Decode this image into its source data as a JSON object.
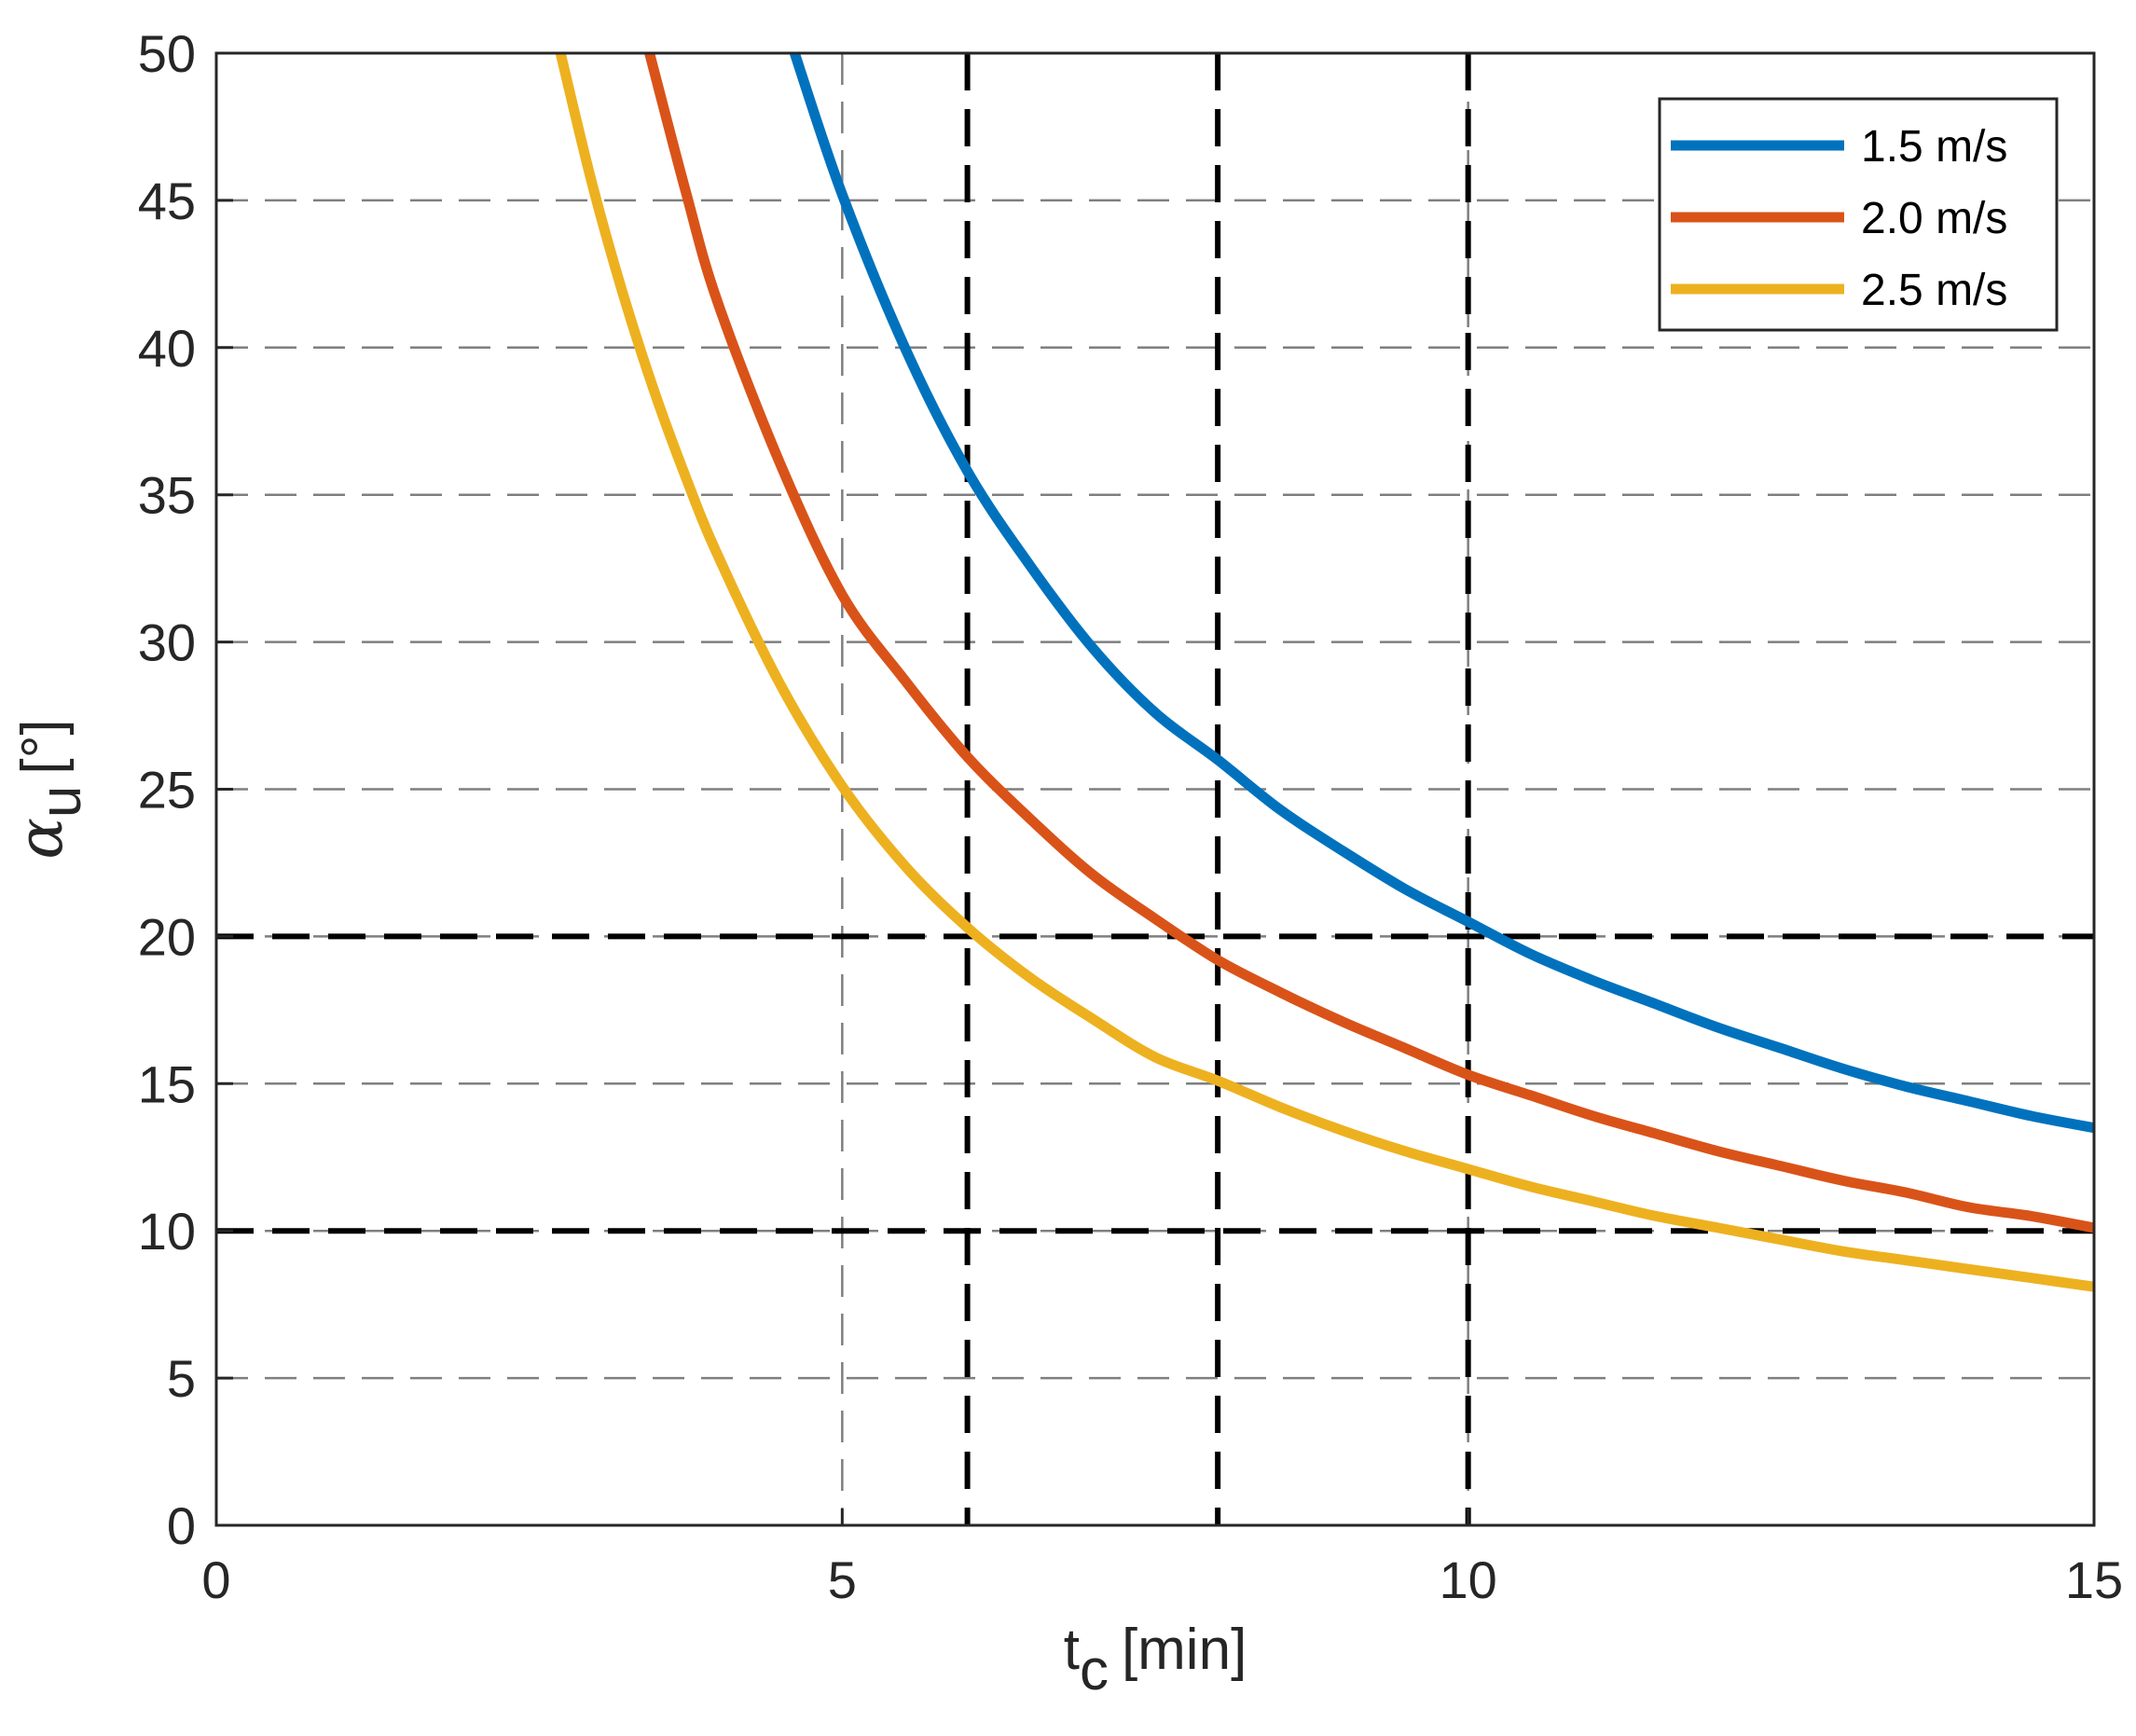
{
  "chart_data": {
    "type": "line",
    "xlabel": "t",
    "xlabel_sub": "c",
    "xlabel_unit": "[min]",
    "ylabel": "α",
    "ylabel_sub": "u",
    "ylabel_unit": "[°]",
    "xlim": [
      0,
      15
    ],
    "ylim": [
      0,
      50
    ],
    "xticks": [
      0,
      5,
      10,
      15
    ],
    "yticks": [
      0,
      5,
      10,
      15,
      20,
      25,
      30,
      35,
      40,
      45,
      50
    ],
    "grid": true,
    "legend_position": "top-right",
    "series": [
      {
        "name": "1.5 m/s",
        "color": "#0072BD",
        "x": [
          4.62,
          5,
          5.5,
          6,
          6.5,
          7,
          7.5,
          8,
          8.5,
          9,
          9.5,
          10,
          10.5,
          11,
          11.5,
          12,
          12.5,
          13,
          13.5,
          14,
          14.5,
          15
        ],
        "y": [
          50,
          45.2,
          40.0,
          35.8,
          32.6,
          29.8,
          27.6,
          26.0,
          24.3,
          22.9,
          21.6,
          20.5,
          19.4,
          18.5,
          17.7,
          16.9,
          16.2,
          15.5,
          14.9,
          14.4,
          13.9,
          13.5
        ]
      },
      {
        "name": "2.0 m/s",
        "color": "#D95319",
        "x": [
          3.46,
          3.75,
          4,
          4.5,
          5,
          5.5,
          6,
          6.5,
          7,
          7.5,
          8,
          8.5,
          9,
          9.5,
          10,
          10.5,
          11,
          11.5,
          12,
          12.5,
          13,
          13.5,
          14,
          14.5,
          15
        ],
        "y": [
          50,
          45.3,
          41.6,
          36.1,
          31.6,
          28.7,
          26.1,
          24.0,
          22.1,
          20.6,
          19.2,
          18.1,
          17.1,
          16.2,
          15.3,
          14.6,
          13.9,
          13.3,
          12.7,
          12.2,
          11.7,
          11.3,
          10.8,
          10.5,
          10.1
        ]
      },
      {
        "name": "2.5 m/s",
        "color": "#EDB120",
        "x": [
          2.75,
          3,
          3.25,
          3.5,
          3.75,
          4,
          4.5,
          5,
          5.5,
          6,
          6.5,
          7,
          7.5,
          8,
          8.5,
          9,
          9.5,
          10,
          10.5,
          11,
          11.5,
          12,
          12.5,
          13,
          13.5,
          14,
          14.5,
          15
        ],
        "y": [
          50,
          45.6,
          41.8,
          38.5,
          35.6,
          33.0,
          28.6,
          25.1,
          22.4,
          20.3,
          18.6,
          17.2,
          15.9,
          15.1,
          14.2,
          13.4,
          12.7,
          12.1,
          11.5,
          11.0,
          10.5,
          10.1,
          9.7,
          9.3,
          9.0,
          8.7,
          8.4,
          8.1
        ]
      }
    ],
    "reference_lines": {
      "vertical_x": [
        6,
        8,
        10
      ],
      "horizontal_y": [
        10,
        20
      ],
      "style": "black dashed"
    }
  }
}
